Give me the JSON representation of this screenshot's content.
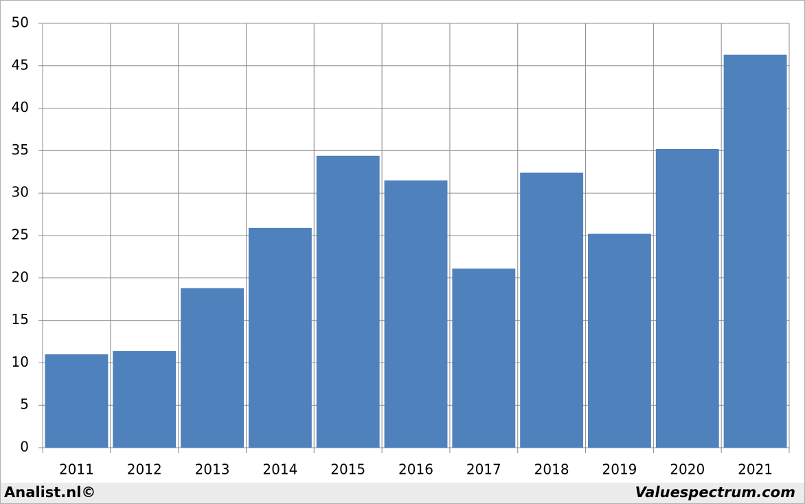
{
  "chart_data": {
    "type": "bar",
    "categories": [
      "2011",
      "2012",
      "2013",
      "2014",
      "2015",
      "2016",
      "2017",
      "2018",
      "2019",
      "2020",
      "2021"
    ],
    "values": [
      11.0,
      11.4,
      18.8,
      25.9,
      34.4,
      31.5,
      21.1,
      32.4,
      25.2,
      35.2,
      46.3
    ],
    "color": "#4f81bd",
    "ylim": [
      0,
      50
    ],
    "yticks": [
      0,
      5,
      10,
      15,
      20,
      25,
      30,
      35,
      40,
      45,
      50
    ],
    "grid": true,
    "annotations": [
      "Analist.nl©",
      "Valuespectrum.com"
    ]
  }
}
